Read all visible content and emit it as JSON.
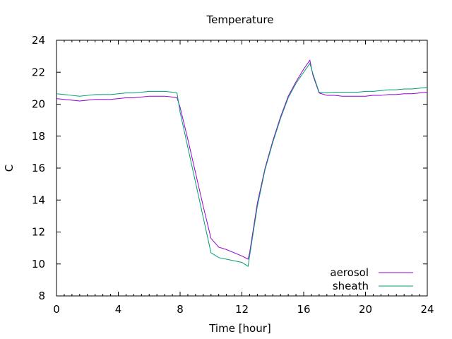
{
  "chart_data": {
    "type": "line",
    "title": "Temperature",
    "xlabel": "Time [hour]",
    "ylabel": "C",
    "xlim": [
      0,
      24
    ],
    "ylim": [
      8,
      24
    ],
    "xticks": [
      0,
      4,
      8,
      12,
      16,
      20,
      24
    ],
    "yticks": [
      8,
      10,
      12,
      14,
      16,
      18,
      20,
      22,
      24
    ],
    "grid": false,
    "legend_position": "bottom-right",
    "series": [
      {
        "name": "aerosol",
        "color": "#9400d3",
        "points": [
          [
            0,
            20.35
          ],
          [
            0.5,
            20.3
          ],
          [
            1,
            20.25
          ],
          [
            1.5,
            20.2
          ],
          [
            2,
            20.25
          ],
          [
            2.5,
            20.3
          ],
          [
            3,
            20.3
          ],
          [
            3.5,
            20.3
          ],
          [
            4,
            20.35
          ],
          [
            4.5,
            20.4
          ],
          [
            5,
            20.4
          ],
          [
            5.5,
            20.45
          ],
          [
            6,
            20.5
          ],
          [
            6.5,
            20.5
          ],
          [
            7,
            20.5
          ],
          [
            7.5,
            20.45
          ],
          [
            7.8,
            20.4
          ],
          [
            8,
            19.8
          ],
          [
            8.5,
            17.8
          ],
          [
            9,
            15.7
          ],
          [
            9.5,
            13.6
          ],
          [
            10,
            11.6
          ],
          [
            10.5,
            11.05
          ],
          [
            11,
            10.9
          ],
          [
            11.5,
            10.7
          ],
          [
            12,
            10.5
          ],
          [
            12.4,
            10.3
          ],
          [
            12.5,
            10.7
          ],
          [
            13,
            13.8
          ],
          [
            13.5,
            16.0
          ],
          [
            14,
            17.7
          ],
          [
            14.5,
            19.2
          ],
          [
            15,
            20.5
          ],
          [
            15.5,
            21.4
          ],
          [
            16,
            22.2
          ],
          [
            16.4,
            22.75
          ],
          [
            16.6,
            21.8
          ],
          [
            17,
            20.7
          ],
          [
            17.5,
            20.55
          ],
          [
            18,
            20.55
          ],
          [
            18.5,
            20.5
          ],
          [
            19,
            20.5
          ],
          [
            19.5,
            20.5
          ],
          [
            20,
            20.5
          ],
          [
            20.5,
            20.55
          ],
          [
            21,
            20.55
          ],
          [
            21.5,
            20.6
          ],
          [
            22,
            20.6
          ],
          [
            22.5,
            20.65
          ],
          [
            23,
            20.65
          ],
          [
            23.5,
            20.7
          ],
          [
            24,
            20.75
          ]
        ]
      },
      {
        "name": "sheath",
        "color": "#009e73",
        "points": [
          [
            0,
            20.65
          ],
          [
            0.5,
            20.6
          ],
          [
            1,
            20.55
          ],
          [
            1.5,
            20.5
          ],
          [
            2,
            20.55
          ],
          [
            2.5,
            20.6
          ],
          [
            3,
            20.6
          ],
          [
            3.5,
            20.6
          ],
          [
            4,
            20.65
          ],
          [
            4.5,
            20.7
          ],
          [
            5,
            20.7
          ],
          [
            5.5,
            20.75
          ],
          [
            6,
            20.8
          ],
          [
            6.5,
            20.8
          ],
          [
            7,
            20.8
          ],
          [
            7.5,
            20.75
          ],
          [
            7.8,
            20.7
          ],
          [
            8,
            19.5
          ],
          [
            8.5,
            17.3
          ],
          [
            9,
            15.1
          ],
          [
            9.5,
            12.9
          ],
          [
            10,
            10.7
          ],
          [
            10.5,
            10.4
          ],
          [
            11,
            10.3
          ],
          [
            11.5,
            10.2
          ],
          [
            12,
            10.1
          ],
          [
            12.4,
            9.85
          ],
          [
            12.5,
            10.5
          ],
          [
            13,
            13.6
          ],
          [
            13.5,
            15.9
          ],
          [
            14,
            17.6
          ],
          [
            14.5,
            19.1
          ],
          [
            15,
            20.4
          ],
          [
            15.5,
            21.3
          ],
          [
            16,
            22.0
          ],
          [
            16.4,
            22.55
          ],
          [
            16.6,
            21.9
          ],
          [
            17,
            20.75
          ],
          [
            17.5,
            20.7
          ],
          [
            18,
            20.75
          ],
          [
            18.5,
            20.75
          ],
          [
            19,
            20.75
          ],
          [
            19.5,
            20.75
          ],
          [
            20,
            20.8
          ],
          [
            20.5,
            20.8
          ],
          [
            21,
            20.85
          ],
          [
            21.5,
            20.9
          ],
          [
            22,
            20.9
          ],
          [
            22.5,
            20.95
          ],
          [
            23,
            20.95
          ],
          [
            23.5,
            21.0
          ],
          [
            24,
            21.05
          ]
        ]
      }
    ]
  }
}
